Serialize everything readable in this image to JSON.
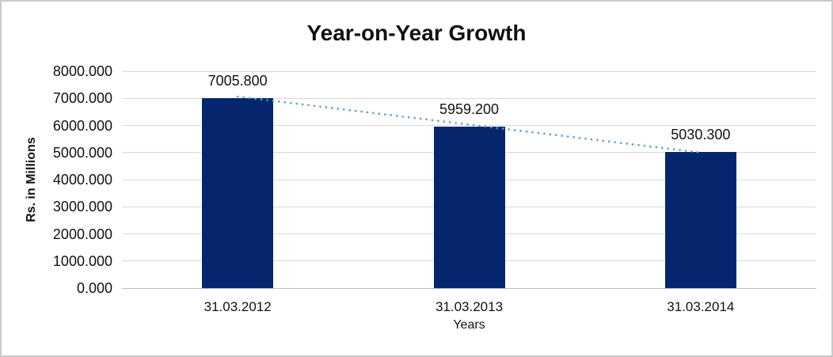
{
  "chart_data": {
    "type": "bar",
    "title": "Year-on-Year Growth",
    "xlabel": "Years",
    "ylabel": "Rs. in Millions",
    "categories": [
      "31.03.2012",
      "31.03.2013",
      "31.03.2014"
    ],
    "values": [
      7005.8,
      5959.2,
      5030.3
    ],
    "data_labels": [
      "7005.800",
      "5959.200",
      "5030.300"
    ],
    "y_tick_labels": [
      "0.000",
      "1000.000",
      "2000.000",
      "3000.000",
      "4000.000",
      "5000.000",
      "6000.000",
      "7000.000",
      "8000.000"
    ],
    "ylim": [
      0,
      8000
    ],
    "grid": "horizontal",
    "legend_position": "none",
    "trendline": {
      "style": "dotted",
      "color": "#5b9bd5",
      "spans": "first-to-last-bar-top"
    },
    "colors": {
      "bar": "#03266d",
      "gridline": "#d9d9d9",
      "axis_line": "#bfbfbf",
      "text": "#111111",
      "page_border": "#c9c9c9",
      "background": "#ffffff"
    }
  }
}
